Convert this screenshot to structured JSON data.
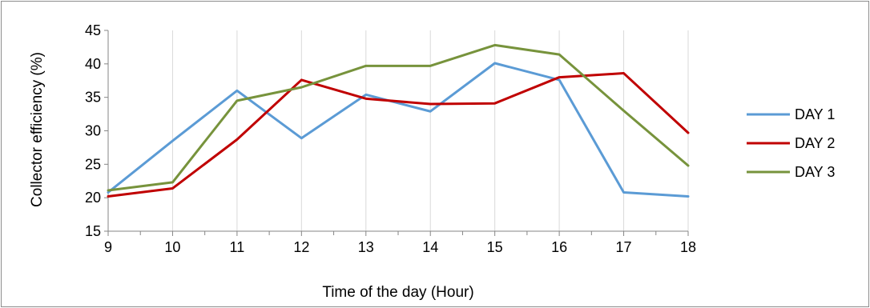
{
  "chart_data": {
    "type": "line",
    "title": "",
    "xlabel": "Time of the day (Hour)",
    "ylabel": "Collector efficiency (%)",
    "x": [
      9,
      10,
      11,
      12,
      13,
      14,
      15,
      16,
      17,
      18
    ],
    "xticks": [
      "9",
      "10",
      "11",
      "12",
      "13",
      "14",
      "15",
      "16",
      "17",
      "18"
    ],
    "ylim": [
      15,
      45
    ],
    "yticks": [
      "15",
      "20",
      "25",
      "30",
      "35",
      "40",
      "45"
    ],
    "grid": "vertical",
    "legend_position": "right",
    "series": [
      {
        "name": "DAY 1",
        "color": "#5b9bd5",
        "values": [
          20.8,
          28.5,
          36.0,
          28.9,
          35.4,
          32.9,
          40.1,
          37.6,
          20.8,
          20.2
        ]
      },
      {
        "name": "DAY 2",
        "color": "#c00000",
        "values": [
          20.2,
          21.4,
          28.7,
          37.6,
          34.8,
          34.0,
          34.1,
          38.0,
          38.6,
          29.7
        ]
      },
      {
        "name": "DAY 3",
        "color": "#77933c",
        "values": [
          21.1,
          22.3,
          34.5,
          36.5,
          39.7,
          39.7,
          42.8,
          41.4,
          33.0,
          24.8
        ]
      }
    ]
  }
}
